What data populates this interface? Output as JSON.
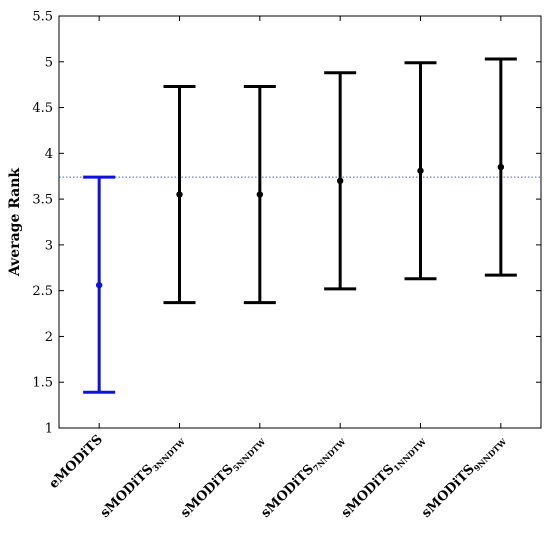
{
  "chart_data": {
    "type": "errorbar",
    "ylabel": "Average Rank",
    "ylim": [
      1,
      5.5
    ],
    "yticks": [
      1,
      1.5,
      2,
      2.5,
      3,
      3.5,
      4,
      4.5,
      5,
      5.5
    ],
    "ytick_labels": [
      "1",
      "1.5",
      "2",
      "2.5",
      "3",
      "3.5",
      "4",
      "4.5",
      "5",
      "5.5"
    ],
    "grid": false,
    "reference_line": {
      "y": 3.74,
      "style": "dotted",
      "color": "#4a5bd9"
    },
    "categories": [
      {
        "main": "eMODiTS",
        "sub": ""
      },
      {
        "main": "sMODiTS",
        "sub": "3NNDTW"
      },
      {
        "main": "sMODiTS",
        "sub": "5NNDTW"
      },
      {
        "main": "sMODiTS",
        "sub": "7NNDTW"
      },
      {
        "main": "sMODiTS",
        "sub": "1NNDTW"
      },
      {
        "main": "sMODiTS",
        "sub": "9NNDTW"
      }
    ],
    "points": [
      {
        "mean": 2.56,
        "lower": 1.39,
        "upper": 3.74,
        "color": "#1010e0"
      },
      {
        "mean": 3.55,
        "lower": 2.37,
        "upper": 4.73,
        "color": "#000000"
      },
      {
        "mean": 3.55,
        "lower": 2.37,
        "upper": 4.73,
        "color": "#000000"
      },
      {
        "mean": 3.7,
        "lower": 2.52,
        "upper": 4.88,
        "color": "#000000"
      },
      {
        "mean": 3.81,
        "lower": 2.63,
        "upper": 4.99,
        "color": "#000000"
      },
      {
        "mean": 3.85,
        "lower": 2.67,
        "upper": 5.03,
        "color": "#000000"
      }
    ]
  }
}
